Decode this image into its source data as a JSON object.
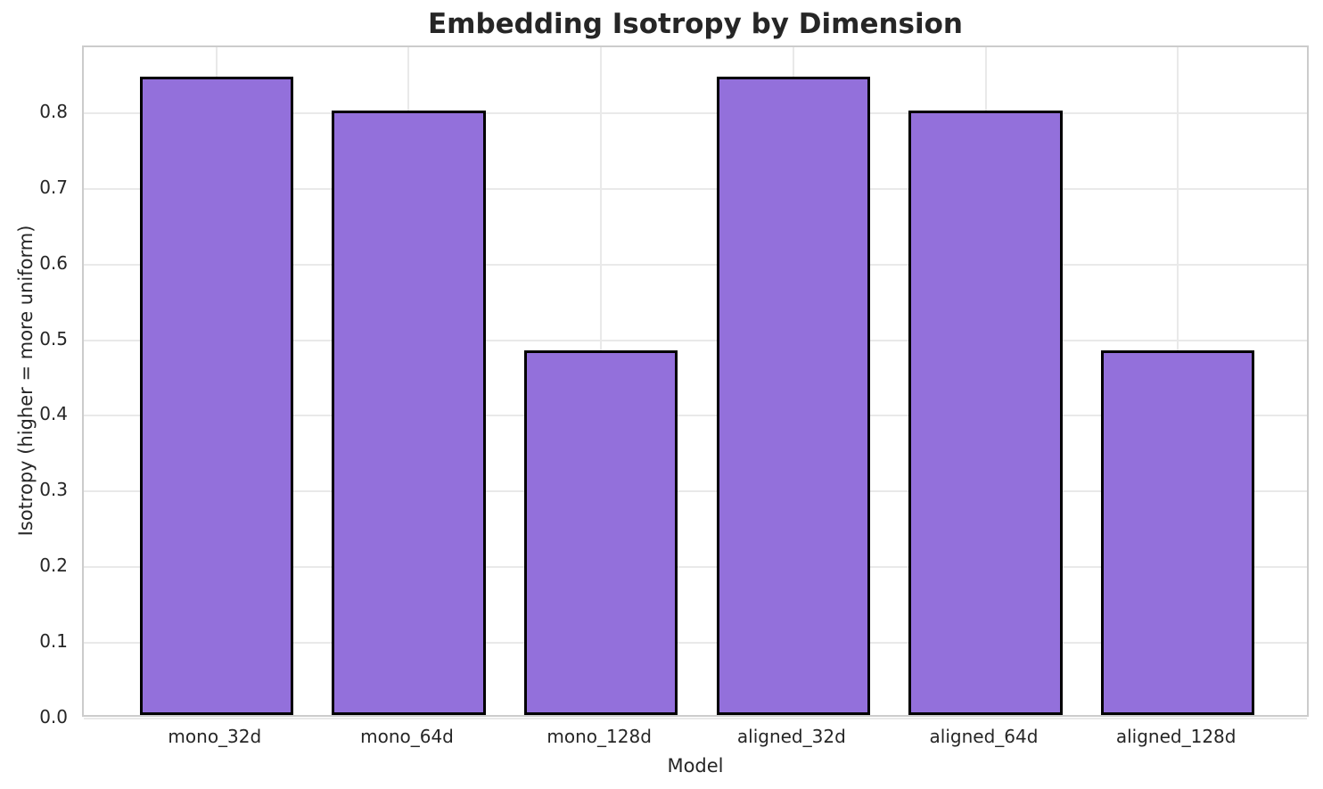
{
  "chart_data": {
    "type": "bar",
    "title": "Embedding Isotropy by Dimension",
    "xlabel": "Model",
    "ylabel": "Isotropy (higher = more uniform)",
    "categories": [
      "mono_32d",
      "mono_64d",
      "mono_128d",
      "aligned_32d",
      "aligned_64d",
      "aligned_128d"
    ],
    "values": [
      0.843,
      0.799,
      0.482,
      0.843,
      0.799,
      0.482
    ],
    "ytick_labels": [
      "0.0",
      "0.1",
      "0.2",
      "0.3",
      "0.4",
      "0.5",
      "0.6",
      "0.7",
      "0.8"
    ],
    "yticks": [
      0.0,
      0.1,
      0.2,
      0.3,
      0.4,
      0.5,
      0.6,
      0.7,
      0.8
    ],
    "ylim": [
      0,
      0.887
    ],
    "grid": true,
    "legend": false,
    "colors": {
      "bar_fill": "#9370DB",
      "bar_edge": "#000000",
      "grid": "#e9e9e9",
      "spine": "#cccccc",
      "text": "#262626",
      "background": "#ffffff"
    }
  }
}
